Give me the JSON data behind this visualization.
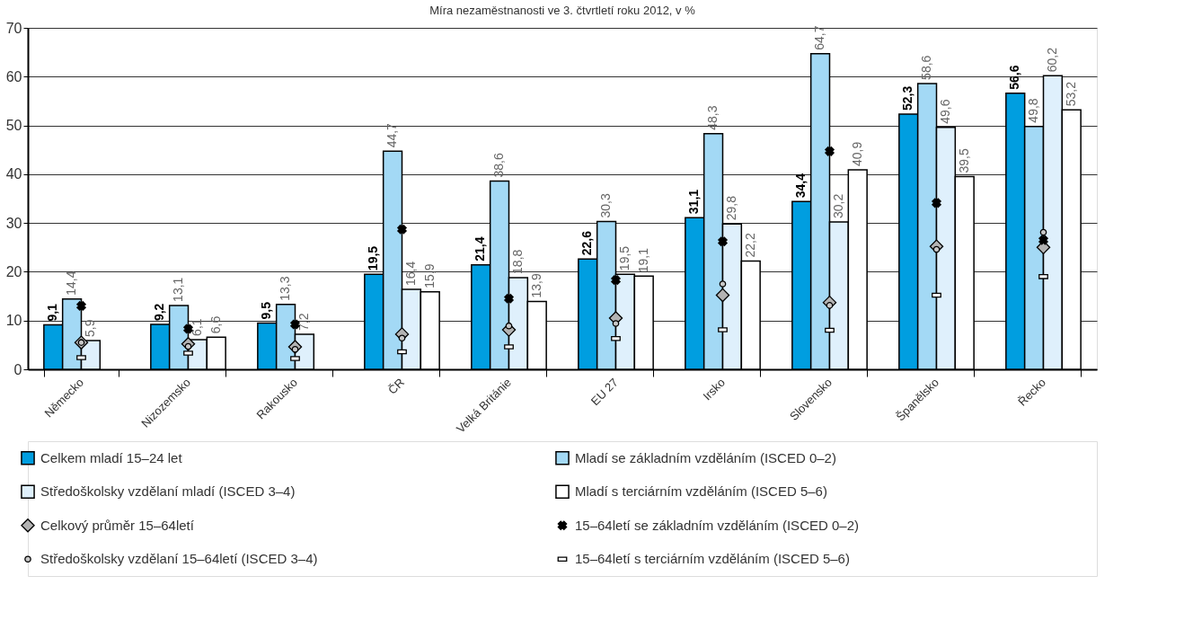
{
  "chart_data": {
    "type": "bar",
    "title": "Míra nezaměstnanosti ve 3. čtvrtletí roku 2012, v %",
    "categories": [
      "Německo",
      "Nizozemsko",
      "Rakousko",
      "ČR",
      "Velká Británie",
      "EU 27",
      "Irsko",
      "Slovensko",
      "Španělsko",
      "Řecko"
    ],
    "ylim": [
      0,
      70
    ],
    "yticks": [
      0,
      10,
      20,
      30,
      40,
      50,
      60,
      70
    ],
    "grid": "y",
    "legend": "bottom",
    "series": [
      {
        "name": "Celkem mladí 15–24 let",
        "color": "#009ee0",
        "values": [
          9.1,
          9.2,
          9.5,
          19.5,
          21.4,
          22.6,
          31.1,
          34.4,
          52.3,
          56.6
        ],
        "value_labels": [
          "9,1",
          "9,2",
          "9,5",
          "19,5",
          "21,4",
          "22,6",
          "31,1",
          "34,4",
          "52,3",
          "56,6"
        ]
      },
      {
        "name": "Mladí se základním vzděláním (ISCED 0–2)",
        "color": "#a3d9f5",
        "values": [
          14.4,
          13.1,
          13.3,
          44.7,
          38.6,
          30.3,
          48.3,
          64.7,
          58.6,
          49.8
        ],
        "value_labels": [
          "14,4",
          "13,1",
          "13,3",
          "44,7",
          "38,6",
          "30,3",
          "48,3",
          "64,7",
          "58,6",
          "49,8"
        ]
      },
      {
        "name": "Středoškolsky vzdělaní mladí (ISCED 3–4)",
        "color": "#dff0fc",
        "values": [
          5.9,
          6.1,
          7.2,
          16.4,
          18.8,
          19.5,
          29.8,
          30.2,
          49.6,
          60.2
        ],
        "value_labels": [
          "5,9",
          "6,1",
          "7,2",
          "16,4",
          "18,8",
          "19,5",
          "29,8",
          "30,2",
          "49,6",
          "60,2"
        ]
      },
      {
        "name": "Mladí s terciárním vzděláním (ISCED 5–6)",
        "color": "#ffffff",
        "values": [
          null,
          6.6,
          null,
          15.9,
          13.9,
          19.1,
          22.2,
          40.9,
          39.5,
          53.2
        ],
        "value_labels": [
          null,
          "6,6",
          null,
          "15,9",
          "13,9",
          "19,1",
          "22,2",
          "40,9",
          "39,5",
          "53,2"
        ]
      },
      {
        "name": "Celkový průměr 15–64letí",
        "type": "scatter",
        "marker": "diamond",
        "color": "#b3b3b3",
        "values": [
          5.5,
          5.2,
          4.6,
          7.2,
          8.1,
          10.5,
          15.2,
          13.7,
          25.2,
          25.0
        ]
      },
      {
        "name": "15–64letí se základním vzděláním (ISCED 0–2)",
        "type": "scatter",
        "marker": "cross",
        "color": "#000000",
        "values": [
          13.0,
          8.3,
          9.2,
          28.7,
          14.5,
          18.3,
          26.2,
          44.7,
          34.1,
          26.5
        ]
      },
      {
        "name": "Středoškolsky vzdělaní 15–64letí (ISCED 3–4)",
        "type": "scatter",
        "marker": "circle",
        "color": "#c8c8c8",
        "values": [
          5.5,
          4.7,
          4.1,
          6.4,
          8.9,
          9.4,
          17.5,
          13.1,
          24.6,
          28.1
        ]
      },
      {
        "name": "15–64letí s terciárním vzděláním (ISCED 5–6)",
        "type": "scatter",
        "marker": "square",
        "color": "#ffffff",
        "values": [
          2.4,
          3.3,
          2.2,
          3.6,
          4.6,
          6.3,
          8.1,
          8.0,
          15.2,
          19.0
        ]
      }
    ]
  }
}
